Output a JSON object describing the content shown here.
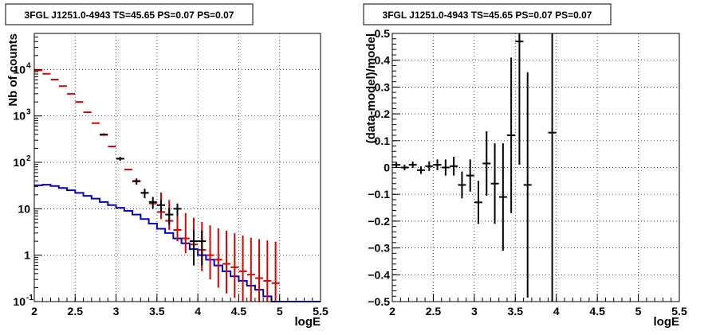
{
  "chart_data": [
    {
      "type": "line",
      "title": "3FGL J1251.0-4943 TS=45.65 PS=0.07 PS=0.07",
      "xlabel": "logE",
      "ylabel": "Nb of counts",
      "xlim": [
        2,
        5.5
      ],
      "ylim": [
        0.1,
        60000
      ],
      "yscale": "log",
      "grid": true,
      "x_ticks": [
        "2",
        "2.5",
        "3",
        "3.5",
        "4",
        "4.5",
        "5",
        "5.5"
      ],
      "y_ticks": [
        {
          "value": 0.1,
          "label": "10",
          "exp": "-1"
        },
        {
          "value": 1,
          "label": "1",
          "exp": ""
        },
        {
          "value": 10,
          "label": "10",
          "exp": ""
        },
        {
          "value": 100,
          "label": "10",
          "exp": "2"
        },
        {
          "value": 1000,
          "label": "10",
          "exp": "3"
        },
        {
          "value": 10000,
          "label": "10",
          "exp": "4"
        }
      ],
      "colors": {
        "total_model": "#dd0000",
        "source_model": "#0000cc",
        "data": "#000000"
      },
      "series": [
        {
          "role": "total_model",
          "x": [
            2.05,
            2.15,
            2.25,
            2.35,
            2.45,
            2.55,
            2.65,
            2.75,
            2.85,
            2.95,
            3.05,
            3.15,
            3.25,
            3.35,
            3.45,
            3.55,
            3.65,
            3.75,
            3.85,
            3.95,
            4.05,
            4.15,
            4.25,
            4.35,
            4.45,
            4.55,
            4.65,
            4.75,
            4.85,
            4.95
          ],
          "y": [
            9600,
            8100,
            6100,
            4400,
            3000,
            2000,
            1200,
            700,
            390,
            220,
            120,
            70,
            40,
            22,
            13,
            8.5,
            5.5,
            3.5,
            2.3,
            1.7,
            1.3,
            1.0,
            0.8,
            0.65,
            0.55,
            0.45,
            0.38,
            0.32,
            0.28,
            0.25
          ],
          "err_lo": [
            0.1,
            0.1,
            0.1,
            0.1,
            0.1,
            0.1,
            0.1,
            0.1,
            0.1,
            0.1,
            0.1,
            0.1,
            0.1,
            0.1,
            0.1,
            2.5,
            2.0,
            1.5,
            1.2,
            1.0,
            0.85,
            0.7,
            0.6,
            0.5,
            0.43,
            0.37,
            0.33,
            0.29,
            0.26,
            0.24
          ],
          "err_hi": [
            0.1,
            0.1,
            0.1,
            0.1,
            0.1,
            0.1,
            0.1,
            0.1,
            0.1,
            0.1,
            0.1,
            0.1,
            0.1,
            0.1,
            0.1,
            14,
            10,
            7.5,
            5.8,
            4.7,
            3.9,
            3.4,
            3.0,
            2.7,
            2.45,
            2.2,
            2.0,
            1.9,
            1.8,
            1.7
          ]
        },
        {
          "role": "source_model",
          "bin_edges": [
            2.0,
            2.1,
            2.2,
            2.3,
            2.4,
            2.5,
            2.6,
            2.7,
            2.8,
            2.9,
            3.0,
            3.1,
            3.2,
            3.3,
            3.4,
            3.5,
            3.6,
            3.7,
            3.8,
            3.9,
            4.0,
            4.1,
            4.2,
            4.3,
            4.4,
            4.5,
            4.6,
            4.7,
            4.8,
            4.9,
            5.0,
            5.1,
            5.2,
            5.3,
            5.4,
            5.5
          ],
          "y": [
            32,
            33,
            31,
            28,
            25,
            22,
            19,
            16.5,
            14,
            12,
            10.5,
            9,
            7.5,
            6,
            4.8,
            3.7,
            3.0,
            2.3,
            1.8,
            1.35,
            1.0,
            0.8,
            0.6,
            0.45,
            0.35,
            0.28,
            0.22,
            0.18,
            0.13,
            0.1,
            0.1,
            0.1,
            0.1,
            0.1,
            0.1
          ]
        },
        {
          "role": "data",
          "x": [
            2.85,
            3.05,
            3.25,
            3.35,
            3.45,
            3.55,
            3.65,
            3.75,
            3.95,
            4.05
          ],
          "y": [
            400,
            120,
            39,
            22,
            14,
            12,
            7.5,
            10,
            2,
            2
          ],
          "err_lo": [
            20,
            11,
            6,
            5,
            4,
            3.5,
            3,
            3,
            1.4,
            1.4
          ],
          "err_hi": [
            20,
            11,
            6,
            5,
            4,
            3.5,
            3,
            3,
            1.4,
            1.4
          ]
        }
      ]
    },
    {
      "type": "scatter",
      "title": "3FGL J1251.0-4943 TS=45.65 PS=0.07 PS=0.07",
      "xlabel": "logE",
      "ylabel": "(data-model)/model",
      "xlim": [
        2,
        5.5
      ],
      "ylim": [
        -0.5,
        0.5
      ],
      "grid": true,
      "x_ticks": [
        "2",
        "2.5",
        "3",
        "3.5",
        "4",
        "4.5",
        "5",
        "5.5"
      ],
      "y_ticks": [
        "−0.5",
        "−0.4",
        "−0.3",
        "−0.2",
        "−0.1",
        "0",
        "0.1",
        "0.2",
        "0.3",
        "0.4",
        "0.5"
      ],
      "series": [
        {
          "role": "residuals",
          "x": [
            2.05,
            2.15,
            2.25,
            2.35,
            2.45,
            2.55,
            2.65,
            2.75,
            2.85,
            2.95,
            3.05,
            3.15,
            3.25,
            3.35,
            3.45,
            3.55,
            3.65,
            3.95
          ],
          "y": [
            0.01,
            0.0,
            0.01,
            -0.01,
            0.005,
            0.01,
            0.0,
            0.005,
            -0.065,
            -0.03,
            -0.13,
            0.015,
            -0.06,
            -0.11,
            0.12,
            0.47,
            -0.065,
            0.13
          ],
          "err": [
            0.01,
            0.01,
            0.012,
            0.014,
            0.018,
            0.02,
            0.03,
            0.035,
            0.05,
            0.06,
            0.08,
            0.12,
            0.15,
            0.2,
            0.29,
            0.46,
            0.42,
            0.8
          ]
        }
      ]
    }
  ]
}
